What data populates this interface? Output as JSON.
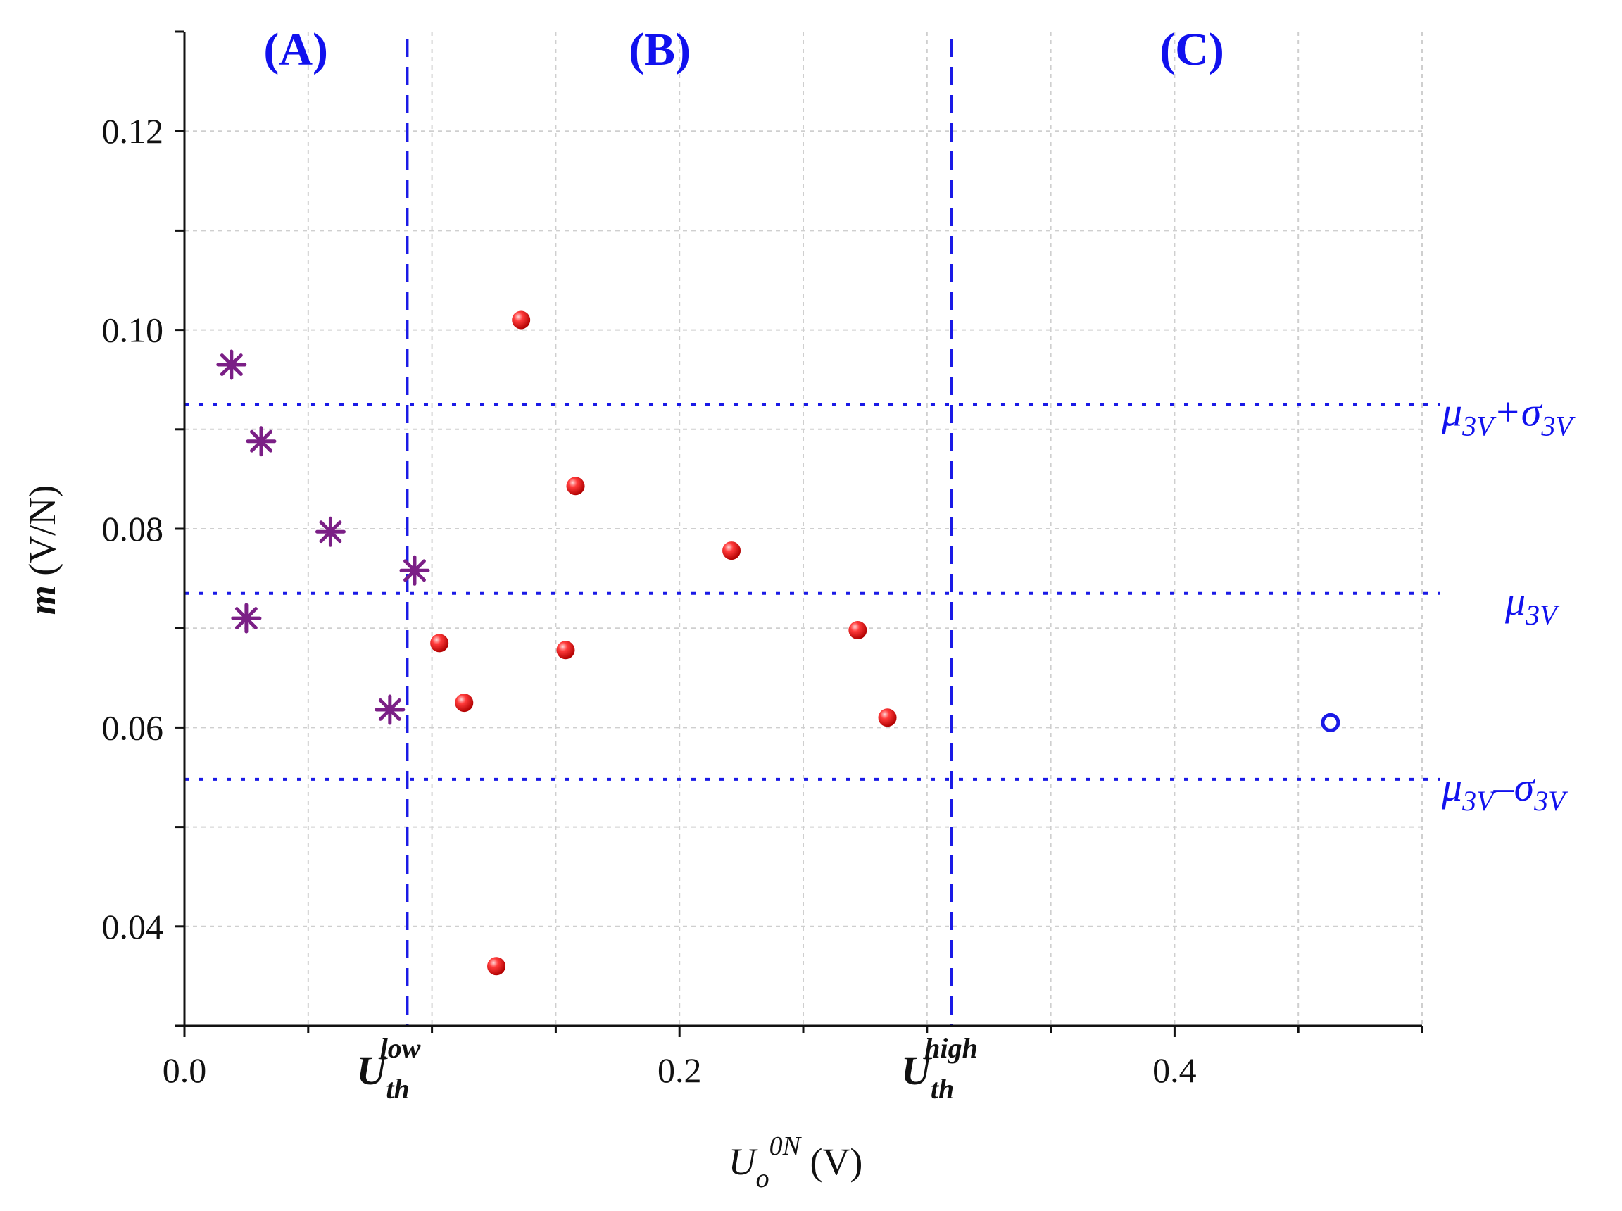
{
  "chart_data": {
    "type": "scatter",
    "xlabel": {
      "base": "U",
      "sub": "o",
      "sup": "0N",
      "unit": "(V)"
    },
    "ylabel": {
      "sym": "m",
      "unit": "(V/N)"
    },
    "xlim": [
      0.0,
      0.5
    ],
    "ylim": [
      0.03,
      0.13
    ],
    "x_ticks": [
      "0.0",
      "0.2",
      "0.4"
    ],
    "x_tick_values": [
      0.0,
      0.2,
      0.4
    ],
    "y_ticks": [
      "0.04",
      "0.06",
      "0.08",
      "0.10",
      "0.12"
    ],
    "y_tick_values": [
      0.04,
      0.06,
      0.08,
      0.1,
      0.12
    ],
    "grid": true,
    "regions": [
      {
        "label": "(A)",
        "center_x": 0.045
      },
      {
        "label": "(B)",
        "center_x": 0.192
      },
      {
        "label": "(C)",
        "center_x": 0.407
      }
    ],
    "thresholds": [
      {
        "name": "U_th_low",
        "base": "U",
        "sub": "th",
        "sup": "low",
        "x": 0.09
      },
      {
        "name": "U_th_high",
        "base": "U",
        "sub": "th",
        "sup": "high",
        "x": 0.31
      }
    ],
    "reference_lines": [
      {
        "name": "mu_plus_sigma",
        "y": 0.0925,
        "mu": "μ",
        "mu_sub": "3V",
        "op": "+",
        "sigma": "σ",
        "sigma_sub": "3V"
      },
      {
        "name": "mu",
        "y": 0.0735,
        "mu": "μ",
        "mu_sub": "3V",
        "op": "",
        "sigma": "",
        "sigma_sub": ""
      },
      {
        "name": "mu_minus_sigma",
        "y": 0.0548,
        "mu": "μ",
        "mu_sub": "3V",
        "op": "–",
        "sigma": "σ",
        "sigma_sub": "3V"
      }
    ],
    "series": [
      {
        "name": "Region A",
        "marker": "asterisk",
        "color": "#7b1f86",
        "points": [
          {
            "x": 0.019,
            "y": 0.0965
          },
          {
            "x": 0.025,
            "y": 0.071
          },
          {
            "x": 0.031,
            "y": 0.0888
          },
          {
            "x": 0.059,
            "y": 0.0797
          },
          {
            "x": 0.083,
            "y": 0.0618
          },
          {
            "x": 0.093,
            "y": 0.0758
          }
        ]
      },
      {
        "name": "Region B",
        "marker": "filled-circle",
        "color": "#e8141a",
        "points": [
          {
            "x": 0.103,
            "y": 0.0685
          },
          {
            "x": 0.113,
            "y": 0.0625
          },
          {
            "x": 0.126,
            "y": 0.036
          },
          {
            "x": 0.136,
            "y": 0.101
          },
          {
            "x": 0.154,
            "y": 0.0678
          },
          {
            "x": 0.158,
            "y": 0.0843
          },
          {
            "x": 0.221,
            "y": 0.0778
          },
          {
            "x": 0.272,
            "y": 0.0698
          },
          {
            "x": 0.284,
            "y": 0.061
          }
        ]
      },
      {
        "name": "Region C",
        "marker": "open-circle",
        "color": "#1a1ae6",
        "points": [
          {
            "x": 0.463,
            "y": 0.0605
          }
        ]
      }
    ]
  }
}
